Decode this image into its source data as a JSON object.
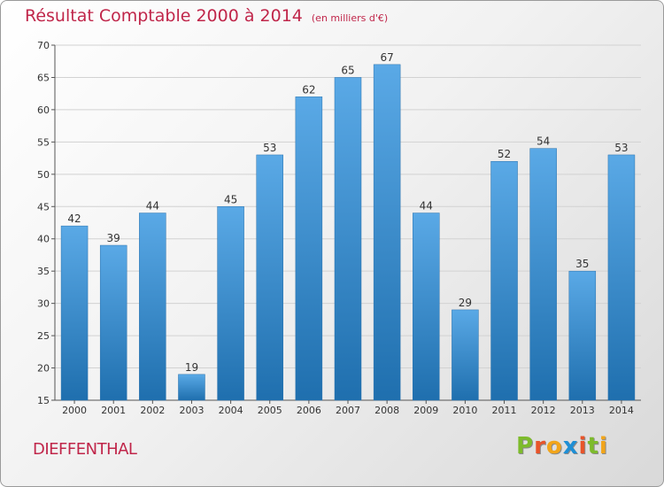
{
  "header": {
    "title": "Résultat Comptable 2000 à 2014",
    "subtitle": "(en milliers d'€)"
  },
  "footer": {
    "city": "DIEFFENTHAL",
    "logo": "Proxiti"
  },
  "colors": {
    "title": "#c0264a",
    "bar_top": "#5aa9e6",
    "bar_bottom": "#1f6fae",
    "logo_letters": [
      "#7dbb2c",
      "#e8542a",
      "#f2a51a",
      "#1e8fd5",
      "#e8542a",
      "#7dbb2c",
      "#f2a51a"
    ]
  },
  "chart_data": {
    "type": "bar",
    "title": "Résultat Comptable 2000 à 2014",
    "subtitle": "(en milliers d'€)",
    "categories": [
      "2000",
      "2001",
      "2002",
      "2003",
      "2004",
      "2005",
      "2006",
      "2007",
      "2008",
      "2009",
      "2010",
      "2011",
      "2012",
      "2013",
      "2014"
    ],
    "values": [
      42,
      39,
      44,
      19,
      45,
      53,
      62,
      65,
      67,
      44,
      29,
      52,
      54,
      35,
      53
    ],
    "ylim": [
      15,
      70
    ],
    "yticks": [
      15,
      20,
      25,
      30,
      35,
      40,
      45,
      50,
      55,
      60,
      65,
      70
    ],
    "grid": true,
    "data_labels": true
  }
}
